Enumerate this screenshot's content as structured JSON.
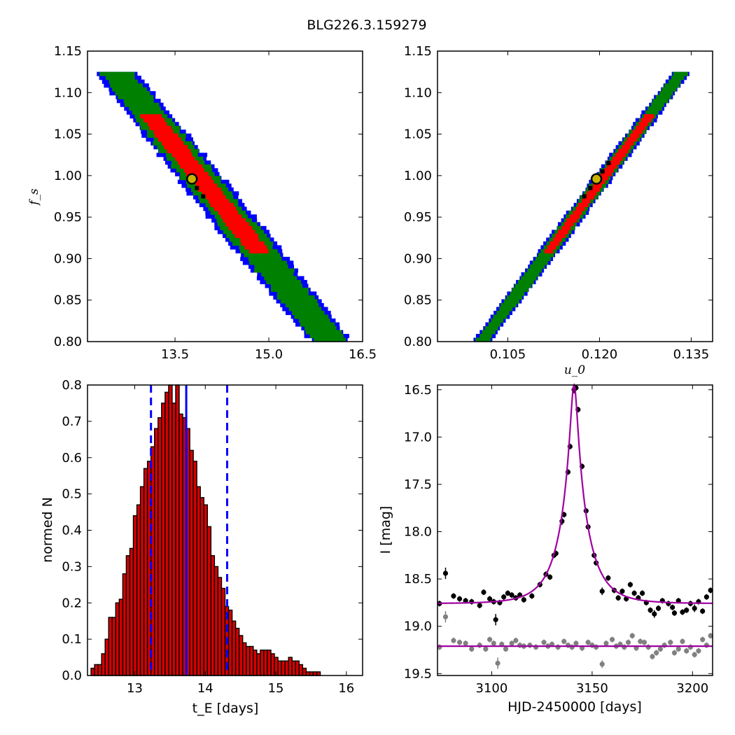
{
  "figure": {
    "title": "BLG226.3.159279",
    "colors": {
      "bg": "#ffffff",
      "red": "#ff0000",
      "green": "#008000",
      "blue": "#0000ff",
      "hist_fill": "#d40000",
      "purple": "#a000a0",
      "gray": "#808080",
      "best_fit": "#c8b400"
    }
  },
  "chart_data": [
    {
      "type": "heatmap",
      "panel": "top-left",
      "xlabel": "",
      "ylabel": "f_s",
      "xlim": [
        12.1,
        16.5
      ],
      "ylim": [
        0.8,
        1.15
      ],
      "xticks": [
        "13.5",
        "15.0",
        "16.5"
      ],
      "xtick_values": [
        13.5,
        15.0,
        16.5
      ],
      "yticks": [
        "0.80",
        "0.85",
        "0.90",
        "0.95",
        "1.00",
        "1.05",
        "1.10",
        "1.15"
      ],
      "ytick_values": [
        0.8,
        0.85,
        0.9,
        0.95,
        1.0,
        1.05,
        1.1,
        1.15
      ],
      "confidence_band": {
        "x_center": [
          12.55,
          16.0
        ],
        "y_range": [
          1.125,
          0.8
        ],
        "halfwidths_x": {
          "red": 0.17,
          "green": 0.3,
          "blue": 0.38
        },
        "red_y_range": [
          1.075,
          0.905
        ]
      },
      "best_fit": {
        "x": 13.77,
        "y": 0.996
      },
      "samples": [
        [
          13.85,
          0.985
        ],
        [
          13.95,
          0.975
        ]
      ],
      "grid": false
    },
    {
      "type": "heatmap",
      "panel": "top-right",
      "xlabel": "u_0",
      "ylabel": "",
      "xlim": [
        0.0935,
        0.1385
      ],
      "ylim": [
        0.8,
        1.15
      ],
      "xticks": [
        "0.105",
        "0.120",
        "0.135"
      ],
      "xtick_values": [
        0.105,
        0.12,
        0.135
      ],
      "yticks": [
        "0.80",
        "0.85",
        "0.90",
        "0.95",
        "1.00",
        "1.05",
        "1.10",
        "1.15"
      ],
      "ytick_values": [
        0.8,
        0.85,
        0.9,
        0.95,
        1.0,
        1.05,
        1.1,
        1.15
      ],
      "confidence_band": {
        "x_center": [
          0.1007,
          0.1335
        ],
        "y_range": [
          0.8,
          1.125
        ],
        "halfwidths_x": {
          "red": 0.0008,
          "green": 0.0013,
          "blue": 0.0017
        },
        "red_y_range": [
          0.905,
          1.075
        ]
      },
      "best_fit": {
        "x": 0.1195,
        "y": 0.996
      },
      "samples": [
        [
          0.1175,
          0.975
        ],
        [
          0.1185,
          0.985
        ],
        [
          0.1205,
          1.005
        ],
        [
          0.1215,
          1.015
        ]
      ],
      "grid": false
    },
    {
      "type": "bar",
      "panel": "bottom-left",
      "xlabel": "t_E [days]",
      "ylabel": "normed N",
      "xlim": [
        12.33,
        16.23
      ],
      "ylim": [
        0.0,
        0.8
      ],
      "xticks": [
        "13",
        "14",
        "15",
        "16"
      ],
      "xtick_values": [
        13,
        14,
        15,
        16
      ],
      "yticks": [
        "0.0",
        "0.1",
        "0.2",
        "0.3",
        "0.4",
        "0.5",
        "0.6",
        "0.7",
        "0.8"
      ],
      "ytick_values": [
        0.0,
        0.1,
        0.2,
        0.3,
        0.4,
        0.5,
        0.6,
        0.7,
        0.8
      ],
      "bin_start": 12.38,
      "bin_width": 0.05,
      "values": [
        0.02,
        0.03,
        0.03,
        0.06,
        0.1,
        0.16,
        0.16,
        0.2,
        0.21,
        0.28,
        0.33,
        0.35,
        0.44,
        0.47,
        0.52,
        0.57,
        0.59,
        0.63,
        0.68,
        0.71,
        0.75,
        0.78,
        0.8,
        0.75,
        0.8,
        0.72,
        0.71,
        0.68,
        0.62,
        0.59,
        0.52,
        0.49,
        0.47,
        0.41,
        0.33,
        0.3,
        0.27,
        0.24,
        0.19,
        0.18,
        0.15,
        0.13,
        0.11,
        0.09,
        0.08,
        0.08,
        0.07,
        0.06,
        0.07,
        0.07,
        0.07,
        0.06,
        0.05,
        0.04,
        0.04,
        0.04,
        0.05,
        0.04,
        0.04,
        0.03,
        0.02,
        0.01,
        0.01,
        0.01,
        0.01
      ],
      "vlines": [
        {
          "x": 13.23,
          "style": "dashed",
          "color": "#0000ff"
        },
        {
          "x": 13.73,
          "style": "solid",
          "color": "#0000ff"
        },
        {
          "x": 14.31,
          "style": "dashed",
          "color": "#0000ff"
        }
      ],
      "grid": false
    },
    {
      "type": "scatter",
      "panel": "bottom-right",
      "xlabel": "HJD-2450000 [days]",
      "ylabel": "I [mag]",
      "xlim": [
        3073,
        3210
      ],
      "ylim": [
        19.52,
        16.45
      ],
      "y_inverted": true,
      "xticks": [
        "3100",
        "3150",
        "3200"
      ],
      "xtick_values": [
        3100,
        3150,
        3200
      ],
      "yticks": [
        "16.5",
        "17.0",
        "17.5",
        "18.0",
        "18.5",
        "19.0",
        "19.5"
      ],
      "ytick_values": [
        16.5,
        17.0,
        17.5,
        18.0,
        18.5,
        19.0,
        19.5
      ],
      "model": {
        "t0": 3141.0,
        "tE": 13.77,
        "u0": 0.1195,
        "I_base": 18.76
      },
      "baseline2": 19.21,
      "series": [
        {
          "color": "#000000",
          "points": [
            [
              3074,
              18.76,
              0.03
            ],
            [
              3077,
              18.44,
              0.06
            ],
            [
              3081,
              18.68,
              0.03
            ],
            [
              3084,
              18.71,
              0.03
            ],
            [
              3087,
              18.73,
              0.03
            ],
            [
              3090,
              18.74,
              0.03
            ],
            [
              3094,
              18.78,
              0.03
            ],
            [
              3096,
              18.64,
              0.03
            ],
            [
              3099,
              18.71,
              0.03
            ],
            [
              3101,
              18.74,
              0.03
            ],
            [
              3102,
              18.93,
              0.06
            ],
            [
              3104,
              18.75,
              0.03
            ],
            [
              3106,
              18.69,
              0.03
            ],
            [
              3108,
              18.65,
              0.03
            ],
            [
              3110,
              18.67,
              0.03
            ],
            [
              3112,
              18.7,
              0.03
            ],
            [
              3114,
              18.67,
              0.03
            ],
            [
              3116,
              18.72,
              0.03
            ],
            [
              3120,
              18.68,
              0.03
            ],
            [
              3124,
              18.56,
              0.03
            ],
            [
              3127,
              18.45,
              0.03
            ],
            [
              3129,
              18.48,
              0.03
            ],
            [
              3131,
              18.25,
              0.03
            ],
            [
              3132,
              18.23,
              0.03
            ],
            [
              3135,
              17.89,
              0.04
            ],
            [
              3136,
              17.82,
              0.03
            ],
            [
              3138,
              17.37,
              0.03
            ],
            [
              3139,
              17.1,
              0.03
            ],
            [
              3141,
              16.5,
              0.04
            ],
            [
              3142,
              16.48,
              0.03
            ],
            [
              3143,
              16.71,
              0.03
            ],
            [
              3145,
              17.31,
              0.03
            ],
            [
              3147,
              17.78,
              0.03
            ],
            [
              3148,
              17.95,
              0.03
            ],
            [
              3151,
              18.25,
              0.03
            ],
            [
              3152,
              18.33,
              0.03
            ],
            [
              3155,
              18.63,
              0.04
            ],
            [
              3158,
              18.49,
              0.03
            ],
            [
              3161,
              18.62,
              0.03
            ],
            [
              3163,
              18.7,
              0.03
            ],
            [
              3165,
              18.63,
              0.03
            ],
            [
              3167,
              18.71,
              0.03
            ],
            [
              3169,
              18.56,
              0.03
            ],
            [
              3171,
              18.65,
              0.03
            ],
            [
              3173,
              18.7,
              0.03
            ],
            [
              3175,
              18.65,
              0.03
            ],
            [
              3177,
              18.75,
              0.03
            ],
            [
              3179,
              18.83,
              0.03
            ],
            [
              3181,
              18.87,
              0.04
            ],
            [
              3183,
              18.81,
              0.03
            ],
            [
              3185,
              18.73,
              0.03
            ],
            [
              3188,
              18.76,
              0.03
            ],
            [
              3190,
              18.8,
              0.03
            ],
            [
              3191,
              18.86,
              0.03
            ],
            [
              3193,
              18.73,
              0.03
            ],
            [
              3195,
              18.85,
              0.03
            ],
            [
              3197,
              18.83,
              0.03
            ],
            [
              3199,
              18.76,
              0.03
            ],
            [
              3201,
              18.81,
              0.04
            ],
            [
              3203,
              18.74,
              0.03
            ],
            [
              3205,
              18.84,
              0.03
            ],
            [
              3207,
              18.69,
              0.03
            ],
            [
              3209,
              18.62,
              0.03
            ]
          ]
        },
        {
          "color": "#808080",
          "points": [
            [
              3074,
              19.22,
              0.03
            ],
            [
              3077,
              18.9,
              0.06
            ],
            [
              3081,
              19.15,
              0.03
            ],
            [
              3084,
              19.17,
              0.03
            ],
            [
              3087,
              19.18,
              0.03
            ],
            [
              3090,
              19.24,
              0.03
            ],
            [
              3094,
              19.2,
              0.03
            ],
            [
              3097,
              19.24,
              0.03
            ],
            [
              3099,
              19.14,
              0.03
            ],
            [
              3101,
              19.18,
              0.03
            ],
            [
              3103,
              19.39,
              0.06
            ],
            [
              3105,
              19.19,
              0.03
            ],
            [
              3107,
              19.24,
              0.03
            ],
            [
              3110,
              19.18,
              0.03
            ],
            [
              3112,
              19.15,
              0.03
            ],
            [
              3114,
              19.2,
              0.03
            ],
            [
              3116,
              19.21,
              0.03
            ],
            [
              3119,
              19.2,
              0.03
            ],
            [
              3122,
              19.22,
              0.03
            ],
            [
              3126,
              19.17,
              0.03
            ],
            [
              3128,
              19.21,
              0.03
            ],
            [
              3130,
              19.19,
              0.03
            ],
            [
              3133,
              19.22,
              0.03
            ],
            [
              3136,
              19.16,
              0.03
            ],
            [
              3138,
              19.2,
              0.03
            ],
            [
              3140,
              19.22,
              0.03
            ],
            [
              3142,
              19.18,
              0.03
            ],
            [
              3145,
              19.23,
              0.03
            ],
            [
              3148,
              19.17,
              0.03
            ],
            [
              3150,
              19.2,
              0.03
            ],
            [
              3152,
              19.22,
              0.03
            ],
            [
              3155,
              19.4,
              0.04
            ],
            [
              3157,
              19.18,
              0.03
            ],
            [
              3160,
              19.14,
              0.03
            ],
            [
              3162,
              19.21,
              0.03
            ],
            [
              3164,
              19.19,
              0.03
            ],
            [
              3166,
              19.22,
              0.03
            ],
            [
              3168,
              19.17,
              0.03
            ],
            [
              3170,
              19.1,
              0.03
            ],
            [
              3172,
              19.23,
              0.03
            ],
            [
              3174,
              19.16,
              0.03
            ],
            [
              3176,
              19.17,
              0.03
            ],
            [
              3178,
              19.22,
              0.03
            ],
            [
              3180,
              19.32,
              0.03
            ],
            [
              3182,
              19.28,
              0.03
            ],
            [
              3184,
              19.24,
              0.03
            ],
            [
              3186,
              19.2,
              0.03
            ],
            [
              3189,
              19.17,
              0.03
            ],
            [
              3191,
              19.28,
              0.03
            ],
            [
              3193,
              19.24,
              0.03
            ],
            [
              3195,
              19.16,
              0.03
            ],
            [
              3197,
              19.26,
              0.03
            ],
            [
              3199,
              19.22,
              0.03
            ],
            [
              3201,
              19.3,
              0.03
            ],
            [
              3203,
              19.26,
              0.03
            ],
            [
              3205,
              19.14,
              0.03
            ],
            [
              3207,
              19.2,
              0.03
            ],
            [
              3209,
              19.1,
              0.03
            ]
          ]
        }
      ],
      "grid": false
    }
  ]
}
